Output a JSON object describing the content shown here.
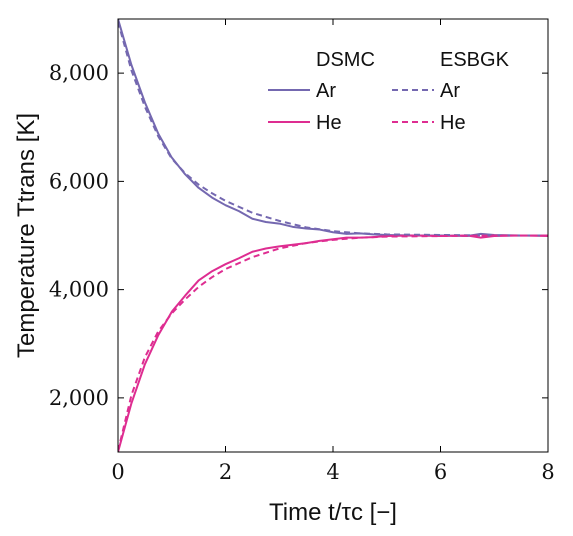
{
  "chart_data": {
    "type": "line",
    "xlabel": "Time t/τc [−]",
    "ylabel": "Temperature Ttrans [K]",
    "xlim": [
      0,
      8
    ],
    "ylim": [
      1000,
      9000
    ],
    "xticks": [
      0,
      2,
      4,
      6,
      8
    ],
    "xtick_labels": [
      "0",
      "2",
      "4",
      "6",
      "8"
    ],
    "yticks": [
      2000,
      4000,
      6000,
      8000
    ],
    "ytick_labels": [
      "2,000",
      "4,000",
      "6,000",
      "8,000"
    ],
    "grid": false,
    "legend": {
      "placement": "top-right",
      "columns": [
        {
          "header": "DSMC",
          "entries": [
            "Ar",
            "He"
          ]
        },
        {
          "header": "ESBGK",
          "entries": [
            "Ar",
            "He"
          ]
        }
      ]
    },
    "colors": {
      "Ar": "#7468b0",
      "He": "#de2d91"
    },
    "series": [
      {
        "method": "DSMC",
        "species": "Ar",
        "style": "solid",
        "x": [
          0,
          0.25,
          0.5,
          0.75,
          1.0,
          1.25,
          1.5,
          1.75,
          2.0,
          2.25,
          2.5,
          2.75,
          3.0,
          3.25,
          3.5,
          3.75,
          4.0,
          4.25,
          4.5,
          4.75,
          5.0,
          5.5,
          6.0,
          6.5,
          6.75,
          7.0,
          7.5,
          8.0
        ],
        "y": [
          9000,
          8150,
          7460,
          6880,
          6440,
          6130,
          5880,
          5700,
          5560,
          5450,
          5310,
          5250,
          5220,
          5160,
          5130,
          5110,
          5060,
          5030,
          5040,
          5020,
          5010,
          5000,
          5000,
          4990,
          5030,
          5010,
          5000,
          5000
        ]
      },
      {
        "method": "DSMC",
        "species": "He",
        "style": "solid",
        "x": [
          0,
          0.25,
          0.5,
          0.75,
          1.0,
          1.25,
          1.5,
          1.75,
          2.0,
          2.25,
          2.5,
          2.75,
          3.0,
          3.25,
          3.5,
          3.75,
          4.0,
          4.25,
          4.5,
          4.75,
          5.0,
          5.5,
          6.0,
          6.5,
          6.75,
          7.0,
          7.5,
          8.0
        ],
        "y": [
          1000,
          1900,
          2620,
          3160,
          3590,
          3890,
          4170,
          4340,
          4470,
          4580,
          4700,
          4760,
          4800,
          4830,
          4860,
          4900,
          4930,
          4960,
          4960,
          4970,
          4990,
          5000,
          4990,
          5000,
          4960,
          4990,
          5000,
          4990
        ]
      },
      {
        "method": "ESBGK",
        "species": "Ar",
        "style": "dashed",
        "x": [
          0,
          0.25,
          0.5,
          0.75,
          1.0,
          1.25,
          1.5,
          1.75,
          2.0,
          2.5,
          3.0,
          3.5,
          4.0,
          4.5,
          5.0,
          6.0,
          7.0,
          8.0
        ],
        "y": [
          8950,
          8050,
          7380,
          6830,
          6420,
          6150,
          5940,
          5780,
          5640,
          5420,
          5270,
          5150,
          5080,
          5040,
          5020,
          5010,
          5000,
          5000
        ]
      },
      {
        "method": "ESBGK",
        "species": "He",
        "style": "dashed",
        "x": [
          0,
          0.25,
          0.5,
          0.75,
          1.0,
          1.25,
          1.5,
          1.75,
          2.0,
          2.5,
          3.0,
          3.5,
          4.0,
          4.5,
          5.0,
          6.0,
          7.0,
          8.0
        ],
        "y": [
          1020,
          2050,
          2750,
          3230,
          3560,
          3820,
          4050,
          4230,
          4380,
          4600,
          4760,
          4860,
          4920,
          4960,
          4980,
          4990,
          5000,
          5000
        ]
      }
    ]
  }
}
